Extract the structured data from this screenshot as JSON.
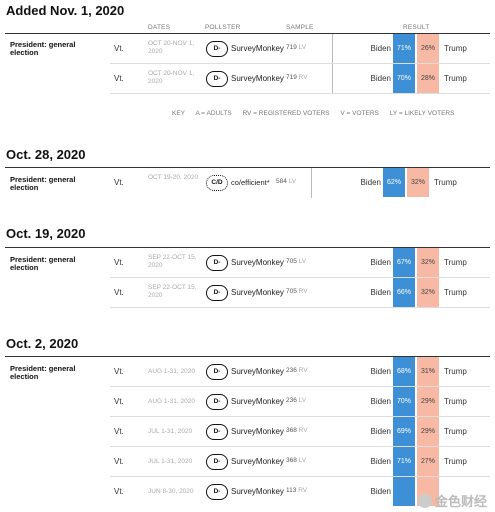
{
  "headers": {
    "dates": "DATES",
    "pollster": "POLLSTER",
    "sample": "SAMPLE",
    "result": "RESULT"
  },
  "key": {
    "label": "KEY",
    "a": "A = ADULTS",
    "rv": "RV = REGISTERED VOTERS",
    "v": "V = VOTERS",
    "lv": "LY = LIKELY VOTERS"
  },
  "sections": [
    {
      "title": "Added Nov. 1, 2020",
      "race": "President: general election",
      "rows": [
        {
          "state": "Vt.",
          "dates": "OCT 20-NOV 1, 2020",
          "grade": "D-",
          "pollster": "SurveyMonkey",
          "sample": "719",
          "type": "LV",
          "biden_label": "Biden",
          "biden": "71%",
          "trump": "26%",
          "trump_label": "Trump"
        },
        {
          "state": "Vt.",
          "dates": "OCT 20-NOV 1, 2020",
          "grade": "D-",
          "pollster": "SurveyMonkey",
          "sample": "719",
          "type": "RV",
          "biden_label": "Biden",
          "biden": "70%",
          "trump": "28%",
          "trump_label": "Trump"
        }
      ]
    },
    {
      "title": "Oct. 28, 2020",
      "race": "President: general election",
      "rows": [
        {
          "state": "Vt.",
          "dates": "OCT 19-20, 2020",
          "grade": "C/D",
          "pollster": "co/efficient*",
          "sample": "584",
          "type": "LV",
          "biden_label": "Biden",
          "biden": "62%",
          "trump": "32%",
          "trump_label": "Trump"
        }
      ]
    },
    {
      "title": "Oct. 19, 2020",
      "race": "President: general election",
      "rows": [
        {
          "state": "Vt.",
          "dates": "SEP 22-OCT 15, 2020",
          "grade": "D-",
          "pollster": "SurveyMonkey",
          "sample": "705",
          "type": "LV",
          "biden_label": "Biden",
          "biden": "67%",
          "trump": "32%",
          "trump_label": "Trump"
        },
        {
          "state": "Vt.",
          "dates": "SEP 22-OCT 15, 2020",
          "grade": "D-",
          "pollster": "SurveyMonkey",
          "sample": "705",
          "type": "RV",
          "biden_label": "Biden",
          "biden": "66%",
          "trump": "32%",
          "trump_label": "Trump"
        }
      ]
    },
    {
      "title": "Oct. 2, 2020",
      "race": "President: general election",
      "rows": [
        {
          "state": "Vt.",
          "dates": "AUG 1-31, 2020",
          "grade": "D-",
          "pollster": "SurveyMonkey",
          "sample": "236",
          "type": "RV",
          "biden_label": "Biden",
          "biden": "68%",
          "trump": "31%",
          "trump_label": "Trump"
        },
        {
          "state": "Vt.",
          "dates": "AUG 1-31, 2020",
          "grade": "D-",
          "pollster": "SurveyMonkey",
          "sample": "236",
          "type": "LV",
          "biden_label": "Biden",
          "biden": "70%",
          "trump": "29%",
          "trump_label": "Trump"
        },
        {
          "state": "Vt.",
          "dates": "JUL 1-31, 2020",
          "grade": "D-",
          "pollster": "SurveyMonkey",
          "sample": "368",
          "type": "RV",
          "biden_label": "Biden",
          "biden": "69%",
          "trump": "29%",
          "trump_label": "Trump"
        },
        {
          "state": "Vt.",
          "dates": "JUL 1-31, 2020",
          "grade": "D-",
          "pollster": "SurveyMonkey",
          "sample": "368",
          "type": "LV",
          "biden_label": "Biden",
          "biden": "71%",
          "trump": "27%",
          "trump_label": "Trump"
        },
        {
          "state": "Vt.",
          "dates": "JUN 8-30, 2020",
          "grade": "D-",
          "pollster": "SurveyMonkey",
          "sample": "113",
          "type": "RV",
          "biden_label": "Biden",
          "biden": "",
          "trump": "",
          "trump_label": ""
        }
      ]
    }
  ],
  "watermark": "金色财经"
}
